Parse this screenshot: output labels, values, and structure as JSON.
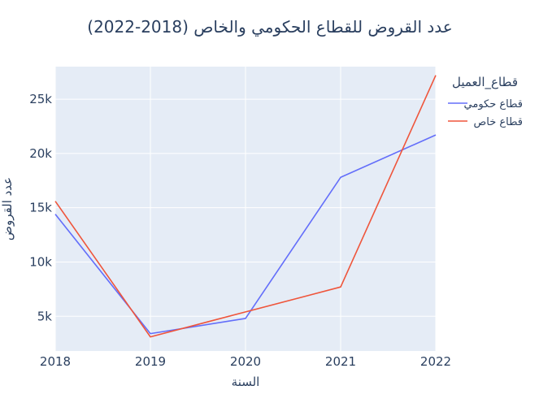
{
  "chart_data": {
    "type": "line",
    "title": "عدد القروض للقطاع الحكومي والخاص (2018-2022)",
    "xlabel": "السنة",
    "ylabel": "عدد القروض",
    "x": [
      2018,
      2019,
      2020,
      2021,
      2022
    ],
    "series": [
      {
        "name": "قطاع حكومي",
        "color": "#636efa",
        "values": [
          14400,
          3400,
          4800,
          17800,
          21700
        ]
      },
      {
        "name": "قطاع خاص",
        "color": "#ef553b",
        "values": [
          15600,
          3100,
          5400,
          7700,
          27200
        ]
      }
    ],
    "xlim": [
      2018,
      2022
    ],
    "ylim": [
      1800,
      28000
    ],
    "y_ticks": [
      5000,
      10000,
      15000,
      20000,
      25000
    ],
    "y_tick_labels": [
      "5k",
      "10k",
      "15k",
      "20k",
      "25k"
    ],
    "x_ticks": [
      2018,
      2019,
      2020,
      2021,
      2022
    ],
    "x_tick_labels": [
      "2018",
      "2019",
      "2020",
      "2021",
      "2022"
    ],
    "legend_title": "قطاع_العميل",
    "legend_position": "right",
    "grid": true,
    "plot_bg": "#e5ecf6"
  }
}
